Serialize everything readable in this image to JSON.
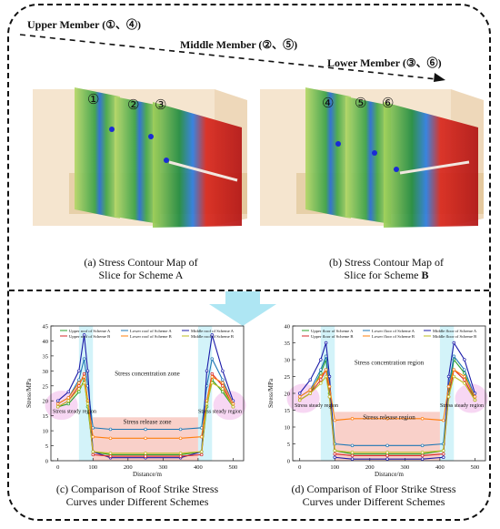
{
  "members": [
    {
      "label": "Upper Member (①、④)"
    },
    {
      "label": "Middle Member (②、⑤)"
    },
    {
      "label": "Lower Member (③、⑥)"
    }
  ],
  "scheme_a": {
    "slices": [
      "①",
      "②",
      "③"
    ],
    "caption_line1": "(a)  Stress Contour Map of",
    "caption_line2": "Slice for Scheme A"
  },
  "scheme_b": {
    "slices": [
      "④",
      "⑤",
      "⑥"
    ],
    "caption_line1": "(b) Stress Contour Map of",
    "caption_line2_prefix": "Slice for Scheme ",
    "caption_line2_bold": "B"
  },
  "chart_c": {
    "caption_line1": "(c) Comparison of Roof Strike Stress",
    "caption_line2": "Curves under Different Schemes",
    "xlabel": "Distance/m",
    "ylabel": "Stress/MPa",
    "xticks": [
      "0",
      "100",
      "200",
      "300",
      "400",
      "500"
    ],
    "yticks": [
      "0",
      "5",
      "10",
      "15",
      "20",
      "25",
      "30",
      "35",
      "40",
      "45"
    ],
    "legend": [
      "Upper roof of Scheme A",
      "Lower roof of Scheme A",
      "Middle roof of Scheme A",
      "Upper roof of Scheme B",
      "Lower roof of Scheme B",
      "Middle roof of Scheme B"
    ],
    "annotations": {
      "concentration": "Stress concentration zone",
      "release": "Stress release zone",
      "steady_left": "Stress steady region",
      "steady_right": "Stress steady region"
    }
  },
  "chart_d": {
    "caption_line1": "(d) Comparison of Floor Strike Stress",
    "caption_line2": "Curves under Different Schemes",
    "xlabel": "Distance/m",
    "ylabel": "Stress/MPa",
    "xticks": [
      "0",
      "100",
      "200",
      "300",
      "400",
      "500"
    ],
    "yticks": [
      "0",
      "5",
      "10",
      "15",
      "20",
      "25",
      "30",
      "35",
      "40"
    ],
    "legend": [
      "Upper floor of Scheme A",
      "Lower floor of Scheme A",
      "Middle floor of Scheme A",
      "Upper floor of Scheme B",
      "Lower floor of Scheme B",
      "Middle floor of Scheme B"
    ],
    "annotations": {
      "concentration": "Stress concentration region",
      "release": "Stress release region",
      "steady_left": "Stress steady region",
      "steady_right": "Stress steady region"
    }
  },
  "chart_data": [
    {
      "type": "line",
      "xlabel": "Distance/m",
      "ylabel": "Stress/MPa",
      "xlim": [
        -20,
        530
      ],
      "ylim": [
        0,
        45
      ],
      "x": [
        0,
        30,
        60,
        75,
        85,
        100,
        150,
        250,
        350,
        410,
        425,
        440,
        470,
        500
      ],
      "series": [
        {
          "name": "Upper roof of Scheme A",
          "color": "#2ca02c",
          "values": [
            18,
            19,
            23,
            27,
            18,
            3,
            2,
            2,
            2,
            3,
            18,
            27,
            23,
            18
          ]
        },
        {
          "name": "Lower roof of Scheme A",
          "color": "#1f77b4",
          "values": [
            19,
            21,
            27,
            34,
            25,
            11,
            10.5,
            10.5,
            10.5,
            11,
            25,
            34,
            27,
            19
          ]
        },
        {
          "name": "Middle roof of Scheme A",
          "color": "#1a1aa8",
          "values": [
            20,
            23,
            30,
            42,
            30,
            3,
            1,
            1,
            1,
            3,
            30,
            42,
            30,
            20
          ]
        },
        {
          "name": "Upper roof of Scheme B",
          "color": "#d62728",
          "values": [
            18,
            20,
            25,
            29,
            20,
            2,
            1.5,
            1.5,
            1.5,
            2,
            20,
            29,
            25,
            18
          ]
        },
        {
          "name": "Lower roof of Scheme B",
          "color": "#ff7f0e",
          "values": [
            19,
            21,
            26,
            28,
            20,
            8,
            7.5,
            7.5,
            7.5,
            8,
            20,
            28,
            26,
            19
          ]
        },
        {
          "name": "Middle roof of Scheme B",
          "color": "#bcbd22",
          "values": [
            18,
            20,
            24,
            26,
            19,
            3,
            2.5,
            2.5,
            2.5,
            3,
            19,
            26,
            24,
            18
          ]
        }
      ]
    },
    {
      "type": "line",
      "xlabel": "Distance/m",
      "ylabel": "Stress/MPa",
      "xlim": [
        -20,
        530
      ],
      "ylim": [
        0,
        40
      ],
      "x": [
        0,
        30,
        60,
        75,
        85,
        100,
        150,
        250,
        350,
        410,
        425,
        440,
        470,
        500
      ],
      "series": [
        {
          "name": "Upper floor of Scheme A",
          "color": "#2ca02c",
          "values": [
            18,
            20,
            26,
            30,
            20,
            3,
            2,
            2,
            2,
            3,
            20,
            30,
            26,
            18
          ]
        },
        {
          "name": "Lower floor of Scheme A",
          "color": "#1f77b4",
          "values": [
            19,
            21,
            27,
            31,
            22,
            5,
            4.5,
            4.5,
            4.5,
            5,
            22,
            31,
            27,
            19
          ]
        },
        {
          "name": "Middle floor of Scheme A",
          "color": "#1a1aa8",
          "values": [
            20,
            24,
            30,
            35,
            25,
            1,
            0.5,
            0.5,
            0.5,
            1,
            25,
            35,
            30,
            20
          ]
        },
        {
          "name": "Upper floor of Scheme B",
          "color": "#d62728",
          "values": [
            18,
            20,
            24,
            27,
            19,
            2,
            1.5,
            1.5,
            1.5,
            2,
            19,
            27,
            24,
            18
          ]
        },
        {
          "name": "Lower floor of Scheme B",
          "color": "#ff7f0e",
          "values": [
            19,
            21,
            25,
            27,
            22,
            12,
            12.5,
            12.5,
            12.5,
            12,
            22,
            27,
            25,
            19
          ]
        },
        {
          "name": "Middle floor of Scheme B",
          "color": "#bcbd22",
          "values": [
            18,
            20,
            23,
            25,
            19,
            3,
            2.5,
            2.5,
            2.5,
            3,
            19,
            25,
            23,
            18
          ]
        }
      ]
    }
  ]
}
